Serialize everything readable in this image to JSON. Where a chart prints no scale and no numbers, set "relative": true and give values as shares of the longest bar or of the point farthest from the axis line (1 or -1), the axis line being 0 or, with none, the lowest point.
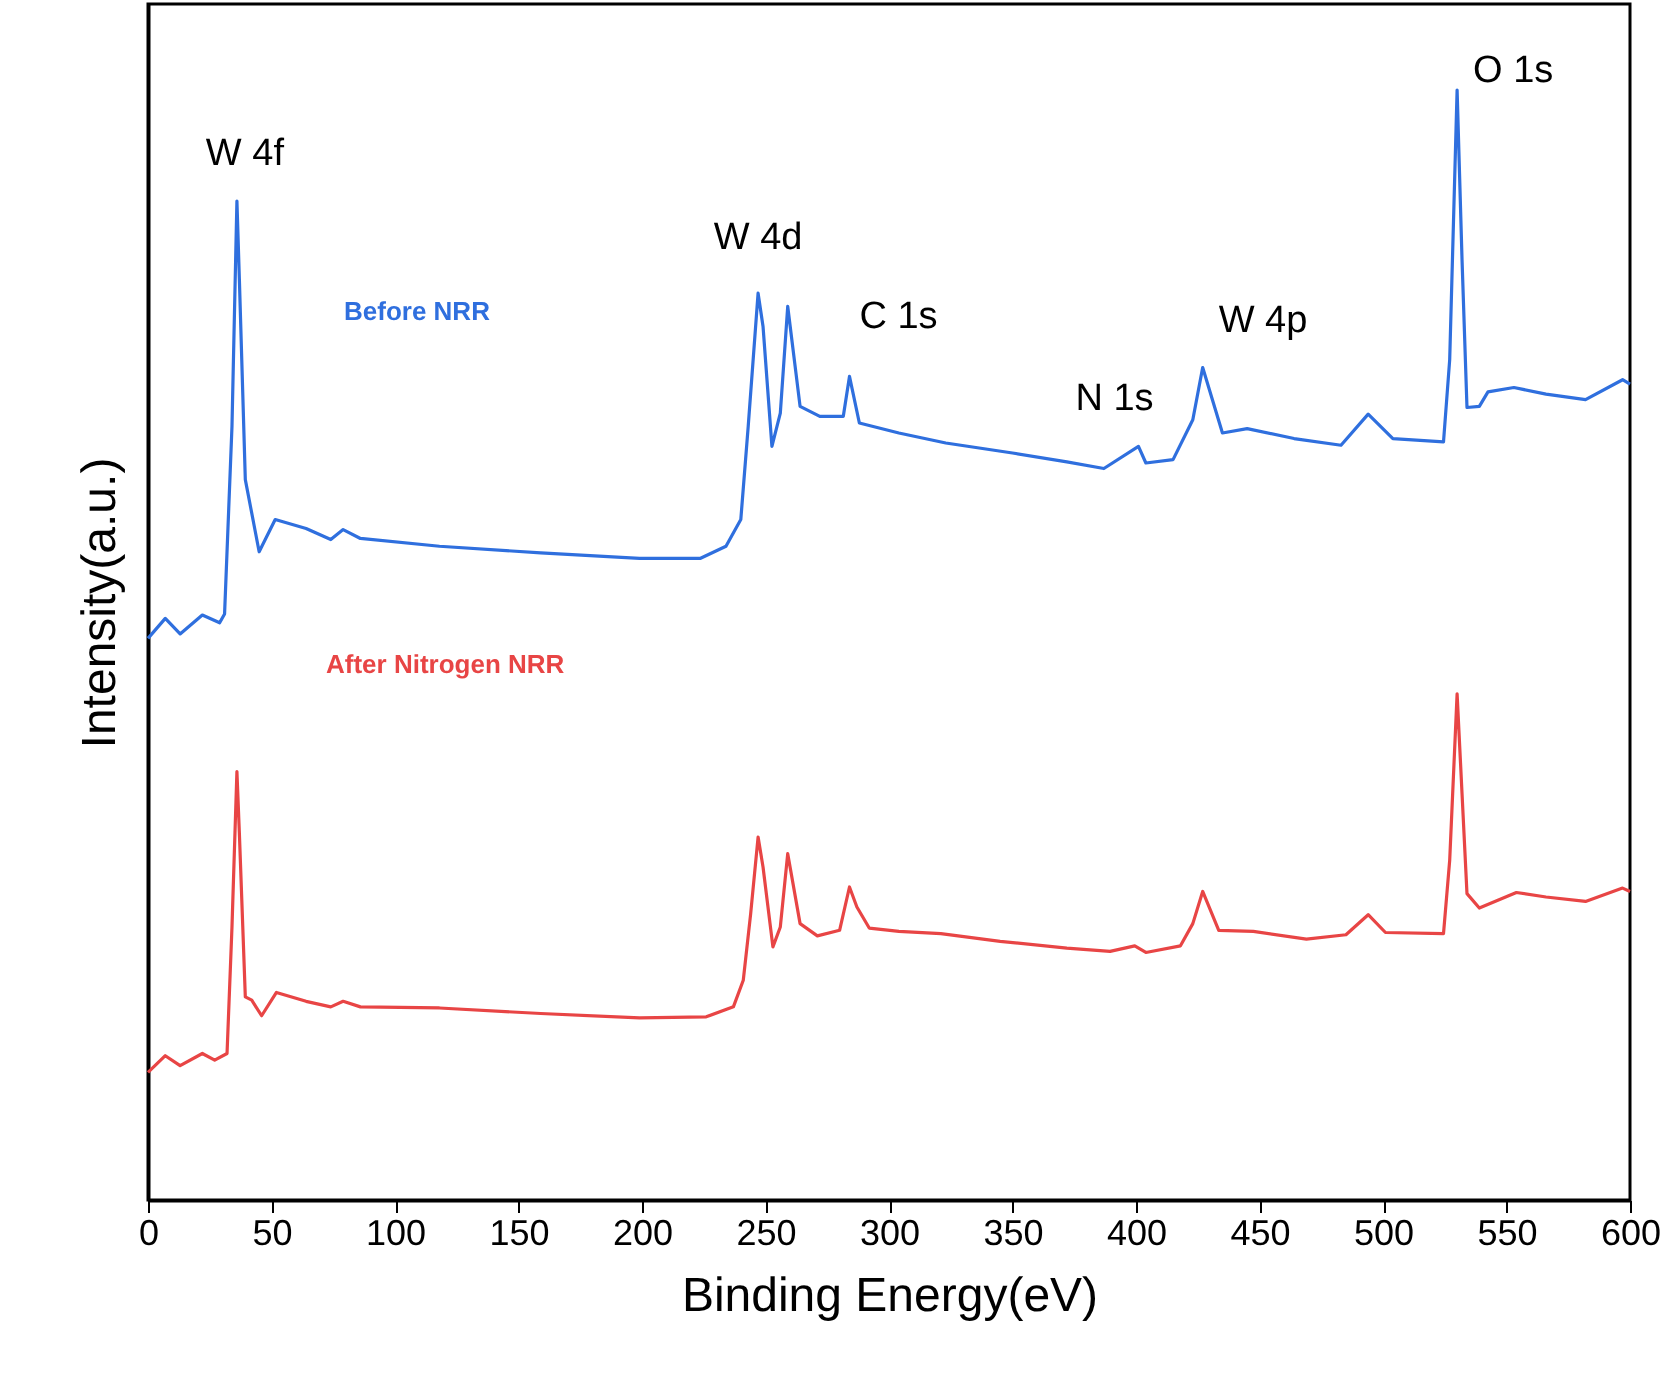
{
  "chart_data": {
    "type": "line",
    "relative": true,
    "xlabel": "Binding Energy(eV)",
    "ylabel": "Intensity(a.u.)",
    "xlim": [
      0,
      600
    ],
    "xticks": [
      0,
      50,
      100,
      150,
      200,
      250,
      300,
      350,
      400,
      450,
      500,
      550,
      600
    ],
    "grid": false,
    "line_style": "solid",
    "series": [
      {
        "name": "Before NRR",
        "color": "#2f6fde",
        "x": [
          0,
          7,
          13,
          22,
          29,
          31,
          34,
          36,
          37,
          39.4,
          45,
          51.5,
          64,
          74,
          79,
          86,
          118,
          159,
          199,
          223.5,
          234,
          240,
          243,
          247,
          249,
          252.6,
          256,
          259,
          264,
          272,
          281.5,
          284,
          288,
          304,
          323,
          350,
          372,
          387,
          401,
          404,
          415,
          423,
          427,
          435,
          445,
          464,
          483,
          494,
          504,
          524.5,
          527,
          530,
          532,
          534,
          539,
          542.5,
          553,
          566,
          582,
          597,
          600
        ],
        "values": [
          0.506,
          0.524,
          0.51,
          0.527,
          0.52,
          0.528,
          0.697,
          0.9,
          0.829,
          0.649,
          0.584,
          0.613,
          0.605,
          0.595,
          0.604,
          0.596,
          0.589,
          0.583,
          0.578,
          0.578,
          0.589,
          0.613,
          0.697,
          0.817,
          0.787,
          0.679,
          0.709,
          0.805,
          0.715,
          0.706,
          0.706,
          0.742,
          0.7,
          0.691,
          0.682,
          0.673,
          0.665,
          0.659,
          0.679,
          0.664,
          0.667,
          0.703,
          0.75,
          0.691,
          0.695,
          0.686,
          0.68,
          0.708,
          0.686,
          0.683,
          0.757,
          1,
          0.847,
          0.714,
          0.715,
          0.728,
          0.732,
          0.726,
          0.721,
          0.739,
          0.735
        ]
      },
      {
        "name": "After Nitrogen NRR",
        "color": "#e84545",
        "x": [
          0,
          7,
          13,
          22,
          27,
          32,
          34,
          36,
          37,
          39.4,
          42,
          46,
          52,
          64,
          74,
          79,
          86,
          118,
          159,
          199,
          226,
          237,
          241,
          244,
          247,
          249,
          253,
          256,
          259,
          264,
          271,
          280,
          284,
          287,
          292,
          304,
          321,
          345,
          372,
          389.5,
          399.5,
          404,
          418,
          423,
          427,
          433.5,
          447.5,
          469,
          485,
          494,
          501,
          524.5,
          527,
          530,
          532,
          534,
          539,
          554,
          566,
          582,
          597,
          600
        ],
        "values": [
          0.115,
          0.13,
          0.121,
          0.132,
          0.126,
          0.132,
          0.246,
          0.386,
          0.33,
          0.183,
          0.18,
          0.166,
          0.187,
          0.179,
          0.174,
          0.179,
          0.174,
          0.173,
          0.168,
          0.164,
          0.165,
          0.174,
          0.198,
          0.258,
          0.327,
          0.3,
          0.228,
          0.246,
          0.312,
          0.249,
          0.238,
          0.243,
          0.282,
          0.264,
          0.245,
          0.242,
          0.24,
          0.233,
          0.227,
          0.224,
          0.229,
          0.223,
          0.229,
          0.249,
          0.278,
          0.243,
          0.242,
          0.235,
          0.239,
          0.257,
          0.241,
          0.24,
          0.306,
          0.456,
          0.366,
          0.276,
          0.263,
          0.277,
          0.273,
          0.269,
          0.281,
          0.278
        ]
      }
    ],
    "annotations": [
      {
        "text": "W 4f",
        "x": 36,
        "y": 0.9
      },
      {
        "text": "W 4d",
        "x": 247,
        "y": 0.817
      },
      {
        "text": "C 1s",
        "x": 284,
        "y": 0.742
      },
      {
        "text": "N 1s",
        "x": 401,
        "y": 0.679
      },
      {
        "text": "W 4p",
        "x": 427,
        "y": 0.75
      },
      {
        "text": "O 1s",
        "x": 530,
        "y": 1
      }
    ]
  }
}
